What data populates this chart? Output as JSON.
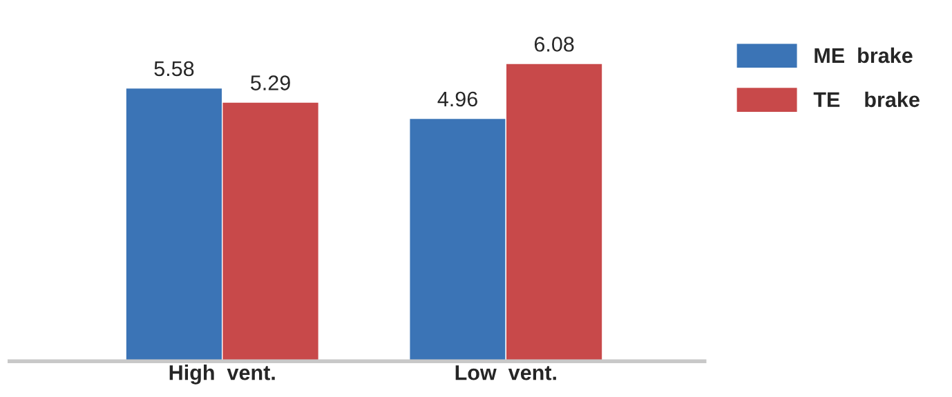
{
  "chart_data": {
    "type": "bar",
    "categories": [
      "High  vent.",
      "Low  vent."
    ],
    "series": [
      {
        "name": "ME  brake",
        "color": "#3b74b6",
        "values": [
          5.58,
          4.96
        ]
      },
      {
        "name": "TE    brake",
        "color": "#c8494a",
        "values": [
          5.29,
          6.08
        ]
      }
    ],
    "data_labels": true,
    "legend": "right",
    "grid": false,
    "tick_labels": "x"
  }
}
